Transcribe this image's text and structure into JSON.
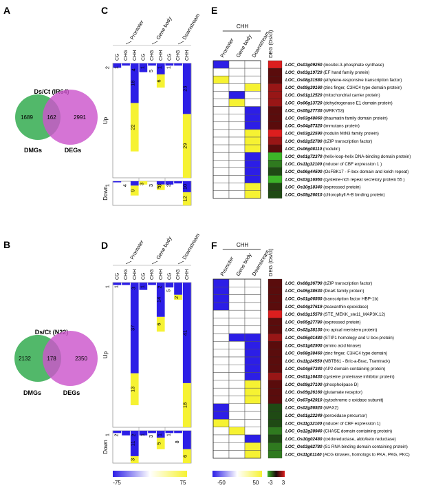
{
  "panel_letters": {
    "A": "A",
    "B": "B",
    "C": "C",
    "D": "D",
    "E": "E",
    "F": "F"
  },
  "colors": {
    "dmg_circle": "#52b86a",
    "deg_circle": "#cc55cc",
    "heat_blue": "#2c1ee6",
    "heat_yellow": "#f6f232",
    "expr_red": "#dc1e1e",
    "expr_green": "#3cb428"
  },
  "chart_data": [
    {
      "type": "venn",
      "panel": "A",
      "title": "Ds/Ct (IR64)",
      "sets": [
        {
          "name": "DMGs",
          "only": 1689
        },
        {
          "name": "DEGs",
          "only": 2991
        }
      ],
      "overlap": 162
    },
    {
      "type": "venn",
      "panel": "B",
      "title": "Ds/Ct (N22)",
      "sets": [
        {
          "name": "DMGs",
          "only": 2132
        },
        {
          "name": "DEGs",
          "only": 2350
        }
      ],
      "overlap": 178
    },
    {
      "type": "heatmap",
      "panel": "C",
      "regions": [
        "Promoter",
        "Gene body",
        "Downstream"
      ],
      "contexts": [
        "CG",
        "CHG",
        "CHH"
      ],
      "row_groups": [
        "Up",
        "Down"
      ],
      "group_counts": [
        {
          "group": "Up",
          "counts": [
            {
              "region": "Promoter",
              "context": "CG",
              "blue": 2,
              "yellow": null
            },
            {
              "region": "Promoter",
              "context": "CHG",
              "blue": 1,
              "yellow": null
            },
            {
              "region": "Promoter",
              "context": "CHH",
              "blue": 18,
              "yellow": 22
            },
            {
              "region": "Gene body",
              "context": "CG",
              "blue": 4,
              "yellow": null
            },
            {
              "region": "Gene body",
              "context": "CHG",
              "blue": 1,
              "yellow": null
            },
            {
              "region": "Gene body",
              "context": "CHH",
              "blue": 5,
              "yellow": 6
            },
            {
              "region": "Downstream",
              "context": "CG",
              "blue": 1,
              "yellow": null
            },
            {
              "region": "Downstream",
              "context": "CHG",
              "blue": 1,
              "yellow": null
            },
            {
              "region": "Downstream",
              "context": "CHH",
              "blue": 23,
              "yellow": 29
            }
          ]
        },
        {
          "group": "Down",
          "counts": [
            {
              "region": "Promoter",
              "context": "CG",
              "blue": 1,
              "yellow": null
            },
            {
              "region": "Promoter",
              "context": "CHH",
              "blue": 4,
              "yellow": 9
            },
            {
              "region": "Gene body",
              "context": "CG",
              "blue": null,
              "yellow": 3
            },
            {
              "region": "Gene body",
              "context": "CHH",
              "blue": 3,
              "yellow": 5
            },
            {
              "region": "Downstream",
              "context": "CG",
              "blue": 3,
              "yellow": null
            },
            {
              "region": "Downstream",
              "context": "CHG",
              "blue": 2,
              "yellow": null
            },
            {
              "region": "Downstream",
              "context": "CHH",
              "blue": 10,
              "yellow": 12
            }
          ]
        }
      ]
    },
    {
      "type": "heatmap",
      "panel": "D",
      "regions": [
        "Promoter",
        "Gene body",
        "Downstream"
      ],
      "contexts": [
        "CG",
        "CHG",
        "CHH"
      ],
      "row_groups": [
        "Up",
        "Down"
      ],
      "color_scale": {
        "min": -75,
        "max": 75,
        "ticks": [
          "-75",
          "75"
        ]
      },
      "group_counts": [
        {
          "group": "Up",
          "counts": [
            {
              "region": "Promoter",
              "context": "CG",
              "blue": 1,
              "yellow": null
            },
            {
              "region": "Promoter",
              "context": "CHG",
              "blue": 1,
              "yellow": null
            },
            {
              "region": "Promoter",
              "context": "CHH",
              "blue": 37,
              "yellow": 13
            },
            {
              "region": "Gene body",
              "context": "CG",
              "blue": 3,
              "yellow": null
            },
            {
              "region": "Gene body",
              "context": "CHG",
              "blue": 1,
              "yellow": null
            },
            {
              "region": "Gene body",
              "context": "CHH",
              "blue": 14,
              "yellow": 6
            },
            {
              "region": "Downstream",
              "context": "CG",
              "blue": 2,
              "yellow": null
            },
            {
              "region": "Downstream",
              "context": "CHG",
              "blue": 5,
              "yellow": 2
            },
            {
              "region": "Downstream",
              "context": "CHH",
              "blue": 41,
              "yellow": 18
            }
          ]
        },
        {
          "group": "Down",
          "counts": [
            {
              "region": "Promoter",
              "context": "CG",
              "blue": 1,
              "yellow": null
            },
            {
              "region": "Promoter",
              "context": "CHG",
              "blue": 2,
              "yellow": null
            },
            {
              "region": "Promoter",
              "context": "CHH",
              "blue": 11,
              "yellow": 3
            },
            {
              "region": "Gene body",
              "context": "CG",
              "blue": 2,
              "yellow": null
            },
            {
              "region": "Gene body",
              "context": "CHG",
              "blue": 1,
              "yellow": null
            },
            {
              "region": "Gene body",
              "context": "CHH",
              "blue": 3,
              "yellow": 5
            },
            {
              "region": "Downstream",
              "context": "CG",
              "blue": 1,
              "yellow": null
            },
            {
              "region": "Downstream",
              "context": "CHG",
              "blue": 1,
              "yellow": null
            },
            {
              "region": "Downstream",
              "context": "CHH",
              "blue": 8,
              "yellow": 6
            }
          ]
        }
      ]
    },
    {
      "type": "heatmap",
      "panel": "E",
      "context_label": "CHH",
      "columns": [
        "Promoter",
        "Gene body",
        "Downstream"
      ],
      "expr_label": "DEG (Ds/ct)",
      "rows": [
        {
          "id": "LOC_Os03g09250",
          "desc": "(inositol-3-phosphate synthase)",
          "cells": [
            "B",
            "",
            ""
          ],
          "deg": "r3"
        },
        {
          "id": "LOC_Os03g19720",
          "desc": "(EF hand family protein)",
          "cells": [
            "",
            "",
            ""
          ],
          "deg": "r1"
        },
        {
          "id": "LOC_Os08g31580",
          "desc": "(ethylene-responsive transcription factor)",
          "cells": [
            "Y",
            "",
            ""
          ],
          "deg": "r1"
        },
        {
          "id": "LOC_Os09g30160",
          "desc": "(zinc finger, C3HC4 type domain protein)",
          "cells": [
            "",
            "",
            "Y"
          ],
          "deg": "r2"
        },
        {
          "id": "LOC_Os01g12520",
          "desc": "(mitochondrial carrier protein)",
          "cells": [
            "",
            "B",
            ""
          ],
          "deg": "r2"
        },
        {
          "id": "LOC_Os06g13720",
          "desc": "(dehydrogenase E1 domain protein)",
          "cells": [
            "",
            "Y",
            ""
          ],
          "deg": "r2"
        },
        {
          "id": "LOC_Os05g27730",
          "desc": "(WRKY53)",
          "cells": [
            "",
            "",
            "B"
          ],
          "deg": "r1"
        },
        {
          "id": "LOC_Os03g48060",
          "desc": "(thaumatin family domain protein)",
          "cells": [
            "",
            "",
            "B"
          ],
          "deg": "r1"
        },
        {
          "id": "LOC_Os04g57320",
          "desc": "(immutans protein)",
          "cells": [
            "",
            "",
            "B"
          ],
          "deg": "r1"
        },
        {
          "id": "LOC_Os03g22590",
          "desc": "(nodulin MtN3 family protein)",
          "cells": [
            "",
            "",
            "Y"
          ],
          "deg": "r3"
        },
        {
          "id": "LOC_Os02g52780",
          "desc": "(bZIP transcription factor)",
          "cells": [
            "",
            "",
            "Y"
          ],
          "deg": "r2"
        },
        {
          "id": "LOC_Os06g08110",
          "desc": "(nodulin)",
          "cells": [
            "",
            "",
            "Y"
          ],
          "deg": "r1"
        },
        {
          "id": "LOC_Os01g72370",
          "desc": "(helix-loop-helix DNA-binding domain protein)",
          "cells": [
            "",
            "",
            "B"
          ],
          "deg": "g3"
        },
        {
          "id": "LOC_Os11g32100",
          "desc": "(inducer of CBF expression 1 )",
          "cells": [
            "",
            "",
            "B"
          ],
          "deg": "g2"
        },
        {
          "id": "LOC_Os06g44500",
          "desc": "(OsFBK17 - F-box domain and kelch repeat)",
          "cells": [
            "",
            "",
            "B"
          ],
          "deg": "g1"
        },
        {
          "id": "LOC_Os03g16950",
          "desc": "(cysteine-rich repeat secretory protein 55 )",
          "cells": [
            "",
            "",
            "B"
          ],
          "deg": "g3"
        },
        {
          "id": "LOC_Os10g18340",
          "desc": "(expressed protein)",
          "cells": [
            "",
            "",
            "Y"
          ],
          "deg": "g1"
        },
        {
          "id": "LOC_Os09g26010",
          "desc": "(chlorophyll A-B binding protein)",
          "cells": [
            "",
            "",
            "Y"
          ],
          "deg": "g1"
        }
      ]
    },
    {
      "type": "heatmap",
      "panel": "F",
      "context_label": "CHH",
      "columns": [
        "Promoter",
        "Gene body",
        "Downstream"
      ],
      "expr_label": "DEG (Ds/ct)",
      "color_scale": {
        "methylation": {
          "min": -50,
          "max": 50,
          "ticks": [
            "-50",
            "50"
          ]
        },
        "expression": {
          "min": -3,
          "max": 3,
          "ticks": [
            "-3",
            "3"
          ]
        }
      },
      "rows": [
        {
          "id": "LOC_Os08g36790",
          "desc": "(bZIP transcription factor)",
          "cells": [
            "B",
            "",
            ""
          ],
          "deg": "r1"
        },
        {
          "id": "LOC_Os05g38530",
          "desc": "(DnaK family protein)",
          "cells": [
            "B",
            "",
            ""
          ],
          "deg": "r1"
        },
        {
          "id": "LOC_Os01g06560",
          "desc": "(transcription factor HBP-1b)",
          "cells": [
            "B",
            "",
            ""
          ],
          "deg": "r1"
        },
        {
          "id": "LOC_Os04g37619",
          "desc": "(zeaxanthin epoxidase)",
          "cells": [
            "B",
            "",
            ""
          ],
          "deg": "r1"
        },
        {
          "id": "LOC_Os03g15570",
          "desc": "(STE_MEKK_ste11_MAP3K.12)",
          "cells": [
            "",
            "",
            ""
          ],
          "deg": "r3"
        },
        {
          "id": "LOC_Os05g27780",
          "desc": "(expressed protein)",
          "cells": [
            "",
            "",
            ""
          ],
          "deg": "r1"
        },
        {
          "id": "LOC_Os02g38130",
          "desc": "(no apical meristem protein)",
          "cells": [
            "",
            "",
            ""
          ],
          "deg": "r1"
        },
        {
          "id": "LOC_Os05g01480",
          "desc": "(STIP1 homology and U box-protein)",
          "cells": [
            "",
            "B",
            "B"
          ],
          "deg": "r2"
        },
        {
          "id": "LOC_Os01g62900",
          "desc": "(amino acid kinase)",
          "cells": [
            "",
            "",
            "B"
          ],
          "deg": "r1"
        },
        {
          "id": "LOC_Os08g38460",
          "desc": "(zinc finger, C3HC4 type domain)",
          "cells": [
            "",
            "",
            "B"
          ],
          "deg": "r1"
        },
        {
          "id": "LOC_Os11g24550",
          "desc": "(MBTB61 - Bric-a-Brac, Tramtrack)",
          "cells": [
            "",
            "",
            "B"
          ],
          "deg": "r1"
        },
        {
          "id": "LOC_Os04g57340",
          "desc": "(AP2 domain containing protein)",
          "cells": [
            "",
            "",
            "B"
          ],
          "deg": "r1"
        },
        {
          "id": "LOC_Os01g16430",
          "desc": "(cysteine proteinase inhibitor protein)",
          "cells": [
            "",
            "",
            "B"
          ],
          "deg": "r2"
        },
        {
          "id": "LOC_Os09g37100",
          "desc": "(phospholipase D)",
          "cells": [
            "",
            "",
            "Y"
          ],
          "deg": "r1"
        },
        {
          "id": "LOC_Os09g26160",
          "desc": "(glutamate receptor)",
          "cells": [
            "",
            "",
            "Y"
          ],
          "deg": "r1"
        },
        {
          "id": "LOC_Os07g42910",
          "desc": "(cytochrome c oxidase subunit)",
          "cells": [
            "",
            "",
            "Y"
          ],
          "deg": "r1"
        },
        {
          "id": "LOC_Os02g56920",
          "desc": "(WAX2)",
          "cells": [
            "B",
            "",
            ""
          ],
          "deg": "g1"
        },
        {
          "id": "LOC_Os01g22249",
          "desc": "(peroxidase precursor)",
          "cells": [
            "B",
            "",
            ""
          ],
          "deg": "g1"
        },
        {
          "id": "LOC_Os11g32100",
          "desc": "(inducer of CBF expression 1)",
          "cells": [
            "Y",
            "",
            ""
          ],
          "deg": "g1"
        },
        {
          "id": "LOC_Os12g28940",
          "desc": "(CHASE domain containing protein)",
          "cells": [
            "",
            "Y",
            ""
          ],
          "deg": "g2"
        },
        {
          "id": "LOC_Os10g02480",
          "desc": "(oxidoreductase, aldo/keto reductase)",
          "cells": [
            "",
            "",
            "B"
          ],
          "deg": "g1"
        },
        {
          "id": "LOC_Os03g62780",
          "desc": "(S1 RNA binding domain containing protein)",
          "cells": [
            "",
            "",
            "Y"
          ],
          "deg": "g2"
        },
        {
          "id": "LOC_Os11g01140",
          "desc": "(ACG kinases, homologs to PKA, PKG, PKC)",
          "cells": [
            "",
            "",
            "Y"
          ],
          "deg": "g2"
        }
      ]
    }
  ]
}
